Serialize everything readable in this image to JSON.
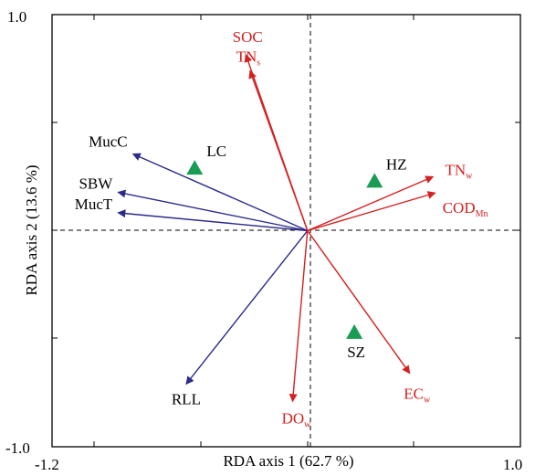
{
  "chart_data": {
    "type": "scatter",
    "subtype": "rda-biplot",
    "xlabel": "RDA axis 1 (62.7 %)",
    "ylabel": "RDA axis 2 (13.6 %)",
    "xlim": [
      -1.2,
      1.0
    ],
    "ylim": [
      -1.0,
      1.0
    ],
    "x_tick_labels": [
      "-1.2",
      "1.0"
    ],
    "y_tick_labels": [
      "1.0",
      "-1.0"
    ],
    "zero_lines": "dashed",
    "colors": {
      "response": "#2b2b8c",
      "explanatory": "#d42020",
      "sites": "#1a9c55",
      "frame": "#000000"
    },
    "response_vectors": [
      {
        "name": "MucC",
        "x": -0.82,
        "y": 0.355
      },
      {
        "name": "SBW",
        "x": -0.89,
        "y": 0.178
      },
      {
        "name": "MucT",
        "x": -0.89,
        "y": 0.083
      },
      {
        "name": "RLL",
        "x": -0.57,
        "y": -0.71
      }
    ],
    "explanatory_vectors": [
      {
        "name": "SOC",
        "main": "SOC",
        "sub": "",
        "x": -0.29,
        "y": 0.815
      },
      {
        "name": "TNs",
        "main": "TN",
        "sub": "s",
        "x": -0.27,
        "y": 0.74
      },
      {
        "name": "TNw",
        "main": "TN",
        "sub": "w",
        "x": 0.59,
        "y": 0.25
      },
      {
        "name": "CODMn",
        "main": "COD",
        "sub": "Mn",
        "x": 0.6,
        "y": 0.175
      },
      {
        "name": "ECw",
        "main": "EC",
        "sub": "w",
        "x": 0.48,
        "y": -0.66
      },
      {
        "name": "DOw",
        "main": "DO",
        "sub": "w",
        "x": -0.07,
        "y": -0.79
      }
    ],
    "sites": [
      {
        "name": "LC",
        "x": -0.53,
        "y": 0.285
      },
      {
        "name": "HZ",
        "x": 0.315,
        "y": 0.225
      },
      {
        "name": "SZ",
        "x": 0.22,
        "y": -0.475
      }
    ]
  }
}
